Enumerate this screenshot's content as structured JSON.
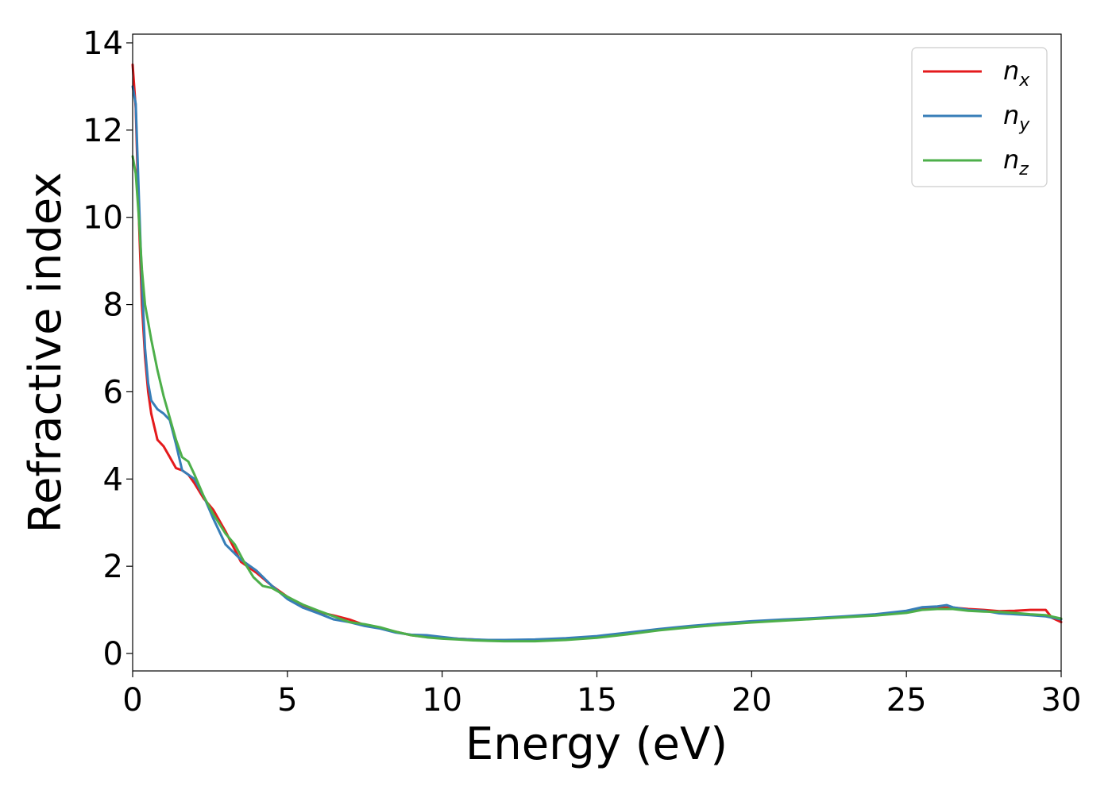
{
  "chart_data": {
    "type": "line",
    "xlabel": "Energy (eV)",
    "ylabel": "Refractive index",
    "xlim": [
      0,
      30
    ],
    "ylim": [
      -0.4,
      14.2
    ],
    "xticks": [
      0,
      5,
      10,
      15,
      20,
      25,
      30
    ],
    "yticks": [
      0,
      2,
      4,
      6,
      8,
      10,
      12,
      14
    ],
    "grid": false,
    "legend_position": "top-right",
    "series": [
      {
        "name": "n_x",
        "label_base": "n",
        "label_sub": "x",
        "color": "#e41a1c",
        "x": [
          0,
          0.1,
          0.2,
          0.3,
          0.4,
          0.5,
          0.6,
          0.7,
          0.8,
          1.0,
          1.2,
          1.4,
          1.6,
          1.8,
          2.0,
          2.3,
          2.6,
          3.0,
          3.5,
          4.0,
          4.5,
          5.0,
          5.5,
          6.0,
          6.5,
          7.0,
          7.5,
          8.0,
          8.5,
          9.0,
          9.5,
          10.0,
          10.5,
          11.0,
          11.5,
          12.0,
          13.0,
          14.0,
          15.0,
          16.0,
          17.0,
          18.0,
          19.0,
          20.0,
          21.0,
          22.0,
          23.0,
          24.0,
          25.0,
          25.5,
          26.0,
          26.5,
          27.0,
          27.5,
          28.0,
          28.5,
          29.0,
          29.5,
          29.7,
          30.0
        ],
        "y": [
          13.5,
          12.5,
          10.0,
          8.0,
          6.8,
          6.0,
          5.5,
          5.2,
          4.9,
          4.75,
          4.5,
          4.25,
          4.2,
          4.1,
          3.9,
          3.55,
          3.3,
          2.8,
          2.1,
          1.85,
          1.55,
          1.3,
          1.1,
          0.95,
          0.87,
          0.78,
          0.65,
          0.58,
          0.5,
          0.42,
          0.38,
          0.36,
          0.34,
          0.32,
          0.3,
          0.3,
          0.3,
          0.33,
          0.38,
          0.47,
          0.55,
          0.62,
          0.68,
          0.73,
          0.77,
          0.8,
          0.84,
          0.88,
          0.95,
          1.03,
          1.05,
          1.05,
          1.02,
          1.0,
          0.97,
          0.98,
          1.0,
          1.0,
          0.82,
          0.72
        ]
      },
      {
        "name": "n_y",
        "label_base": "n",
        "label_sub": "y",
        "color": "#377eb8",
        "x": [
          0,
          0.1,
          0.2,
          0.3,
          0.4,
          0.5,
          0.6,
          0.7,
          0.8,
          1.0,
          1.2,
          1.4,
          1.6,
          1.8,
          2.0,
          2.3,
          2.6,
          3.0,
          3.5,
          4.0,
          4.5,
          5.0,
          5.5,
          6.0,
          6.5,
          7.0,
          7.5,
          8.0,
          8.5,
          9.0,
          9.5,
          10.0,
          10.5,
          11.0,
          11.5,
          12.0,
          13.0,
          14.0,
          15.0,
          16.0,
          17.0,
          18.0,
          19.0,
          20.0,
          21.0,
          22.0,
          23.0,
          24.0,
          25.0,
          25.5,
          26.0,
          26.3,
          26.5,
          27.0,
          27.5,
          28.0,
          28.5,
          29.0,
          29.5,
          30.0
        ],
        "y": [
          13.0,
          12.6,
          10.5,
          8.5,
          7.0,
          6.2,
          5.8,
          5.7,
          5.6,
          5.5,
          5.35,
          4.8,
          4.2,
          4.1,
          4.0,
          3.6,
          3.1,
          2.5,
          2.15,
          1.9,
          1.55,
          1.25,
          1.05,
          0.92,
          0.78,
          0.72,
          0.63,
          0.57,
          0.48,
          0.43,
          0.42,
          0.38,
          0.34,
          0.32,
          0.31,
          0.31,
          0.32,
          0.35,
          0.4,
          0.48,
          0.56,
          0.63,
          0.69,
          0.74,
          0.78,
          0.81,
          0.85,
          0.9,
          0.98,
          1.06,
          1.08,
          1.11,
          1.06,
          1.0,
          0.98,
          0.92,
          0.9,
          0.88,
          0.85,
          0.78
        ]
      },
      {
        "name": "n_z",
        "label_base": "n",
        "label_sub": "z",
        "color": "#4daf4a",
        "x": [
          0,
          0.1,
          0.2,
          0.3,
          0.4,
          0.6,
          0.8,
          1.0,
          1.2,
          1.4,
          1.6,
          1.8,
          2.0,
          2.3,
          2.6,
          3.0,
          3.3,
          3.6,
          3.9,
          4.2,
          4.5,
          5.0,
          5.5,
          6.0,
          6.5,
          7.0,
          7.5,
          8.0,
          8.5,
          9.0,
          9.5,
          10.0,
          10.5,
          11.0,
          11.5,
          12.0,
          13.0,
          14.0,
          15.0,
          16.0,
          17.0,
          18.0,
          19.0,
          20.0,
          21.0,
          22.0,
          23.0,
          24.0,
          25.0,
          25.5,
          26.0,
          26.5,
          27.0,
          27.5,
          28.0,
          28.5,
          29.0,
          29.5,
          30.0
        ],
        "y": [
          11.4,
          11.0,
          10.0,
          8.8,
          8.0,
          7.2,
          6.5,
          5.9,
          5.4,
          4.9,
          4.5,
          4.4,
          4.1,
          3.6,
          3.2,
          2.75,
          2.5,
          2.1,
          1.75,
          1.55,
          1.5,
          1.3,
          1.12,
          0.98,
          0.85,
          0.72,
          0.67,
          0.6,
          0.5,
          0.42,
          0.37,
          0.34,
          0.32,
          0.3,
          0.29,
          0.28,
          0.28,
          0.31,
          0.36,
          0.44,
          0.53,
          0.6,
          0.66,
          0.71,
          0.75,
          0.79,
          0.83,
          0.87,
          0.93,
          1.0,
          1.02,
          1.02,
          0.98,
          0.96,
          0.95,
          0.93,
          0.9,
          0.88,
          0.8
        ]
      }
    ]
  }
}
